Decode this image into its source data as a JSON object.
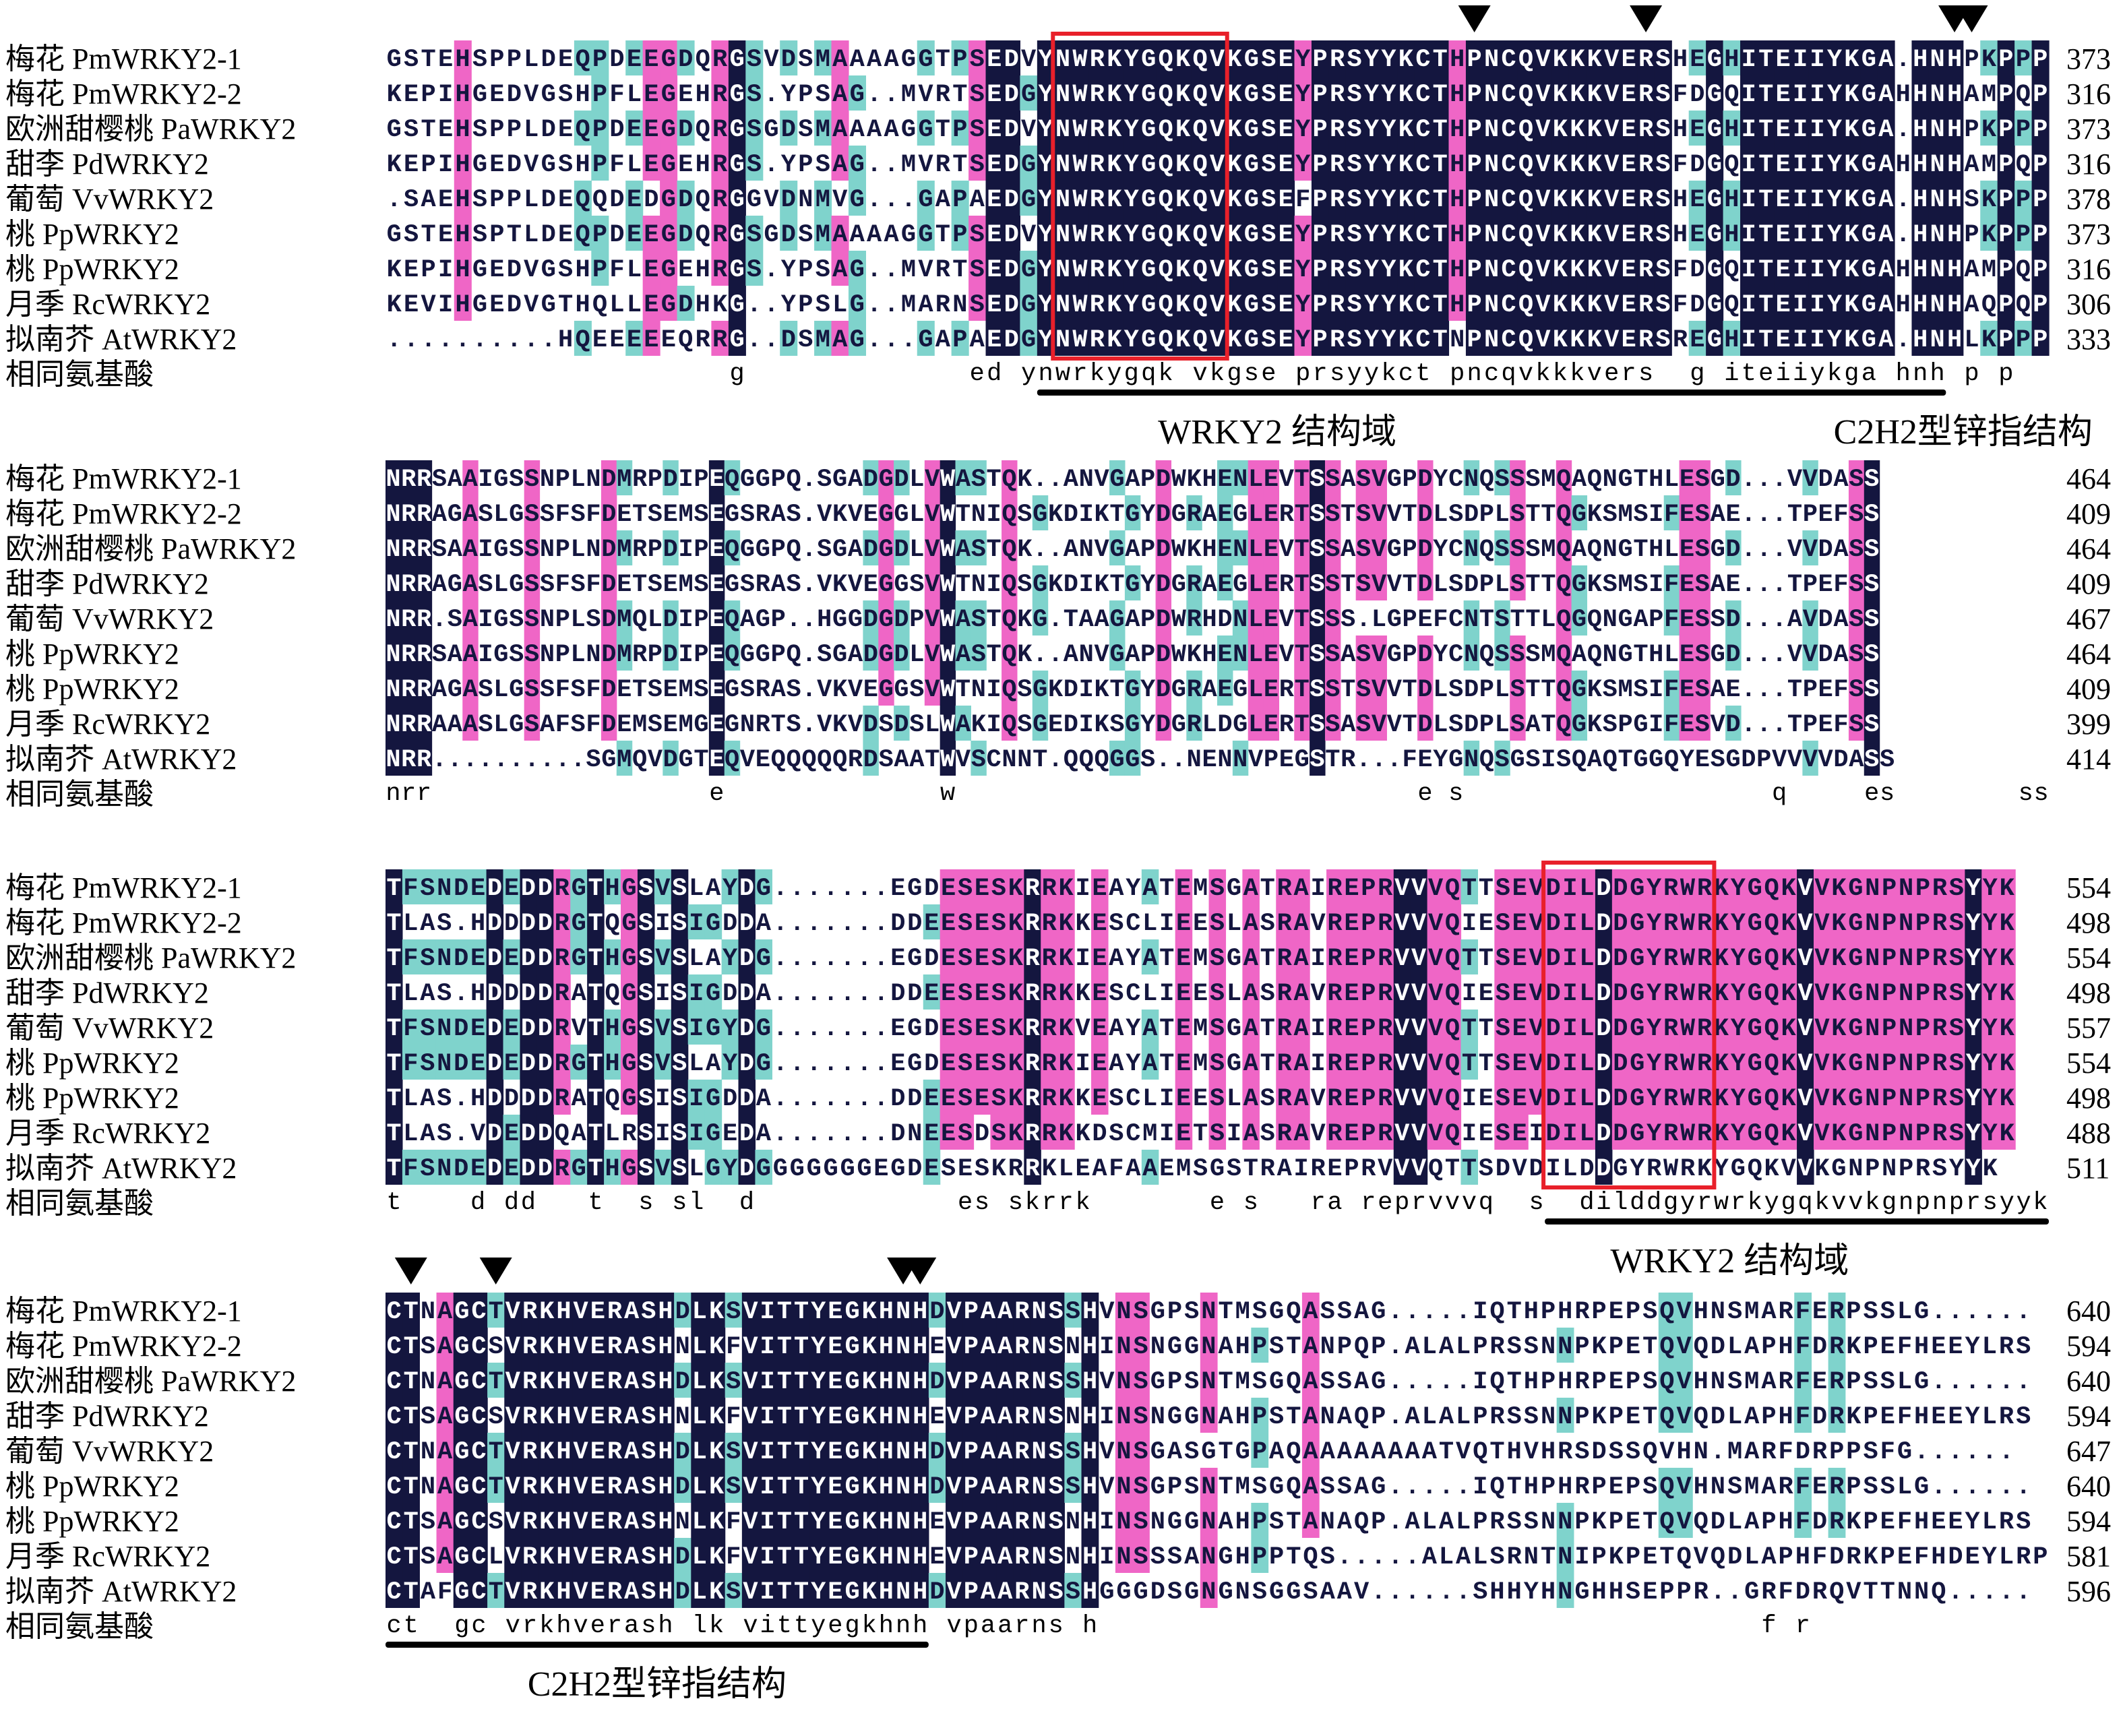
{
  "colors": {
    "identical": "#14163f",
    "high": "#ef66c6",
    "low": "#7fd3cc",
    "box": "#e8202a",
    "bar": "#000000"
  },
  "species": [
    "梅花 PmWRKY2-1",
    "梅花 PmWRKY2-2",
    "欧洲甜樱桃 PaWRKY2",
    "甜李 PdWRKY2",
    "葡萄 VvWRKY2",
    "桃 PpWRKY2",
    "桃 PpWRKY2",
    "月季 RcWRKY2",
    "拟南芥 AtWRKY2"
  ],
  "consensus_label": "相同氨基酸",
  "blocks": [
    {
      "seqs": [
        "GSTEHSPPLDEQPDEEGDQRGSVDSMAAAAGGTPSEDVYNWRKYGQKQVKGSEYPRSYYKCTHPNCQVKKKVERSHEGHITEIIYKGA.HNHPKPPP",
        "KEPIHGEDVGSHPFLEGEHRGS.YPSAG..MVRTSEDGYNWRKYGQKQVKGSEYPRSYYKCTHPNCQVKKKVERSFDGQITEIIYKGAHHNHAMPQP",
        "GSTEHSPPLDEQPDEEGDQRGSGDSMAAAAGGTPSEDVYNWRKYGQKQVKGSEYPRSYYKCTHPNCQVKKKVERSHEGHITEIIYKGA.HNHPKPPP",
        "KEPIHGEDVGSHPFLEGEHRGS.YPSAG..MVRTSEDGYNWRKYGQKQVKGSEYPRSYYKCTHPNCQVKKKVERSFDGQITEIIYKGAHHNHAMPQP",
        ".SAEHSPPLDEQQDEDGDQRGGVDNMVG...GAPAEDGYNWRKYGQKQVKGSEFPRSYYKCTHPNCQVKKKVERSHEGHITEIIYKGA.HNHSKPPP",
        "GSTEHSPTLDEQPDEEGDQRGSGDSMAAAAGGTPSEDVYNWRKYGQKQVKGSEYPRSYYKCTHPNCQVKKKVERSHEGHITEIIYKGA.HNHPKPPP",
        "KEPIHGEDVGSHPFLEGEHRGS.YPSAG..MVRTSEDGYNWRKYGQKQVKGSEYPRSYYKCTHPNCQVKKKVERSFDGQITEIIYKGAHHNHAMPQP",
        "KEVIHGEDVGTHQLLEGDHKG..YPSLG..MARNSEDGYNWRKYGQKQVKGSEYPRSYYKCTHPNCQVKKKVERSFDGQITEIIYKGAHHNHAQPQP",
        "..........HQEEEEEQRRG..DSMAG...GAPAEDGYNWRKYGQKQVKGSEYPRSYYKCTNPNCQVKKKVERSREGHITEIIYKGA.HNHLKPPP"
      ],
      "numbers": [
        "373",
        "316",
        "373",
        "316",
        "378",
        "373",
        "316",
        "306",
        "333"
      ],
      "consensus": "....................g.............ed.ynwrkygqk.vkgse.prsyykct.pncqvkkkvers..g.iteiiykga.hnh.p.p",
      "features": [
        "WRKY2 结构域",
        "C2H2型锌指结构"
      ]
    },
    {
      "seqs": [
        "NRRSAAIGSSNPLNDMRPDIPEQGGPQ.SGADGDLVWASTQK..ANVGAPDWKHENLEVTSSASVGPDYCNQSSSMQAQNGTHLESGD...VVDASS",
        "NRRAGASLGSSFSFDETSEMSEGSRAS.VKVEGGLVWTNIQSGKDIKTGYDGRAEGLERTSSTSVVTDLSDPLSTTQGKSMSIFESAE...TPEFSS",
        "NRRSAAIGSSNPLNDMRPDIPEQGGPQ.SGADGDLVWASTQK..ANVGAPDWKHENLEVTSSASVGPDYCNQSSSMQAQNGTHLESGD...VVDASS",
        "NRRAGASLGSSFSFDETSEMSEGSRAS.VKVEGGSVWTNIQSGKDIKTGYDGRAEGLERTSSTSVVTDLSDPLSTTQGKSMSIFESAE...TPEFSS",
        "NRR.SAIGSSNPLSDMQLDIPEQAGP..HGGDGDPVWASTQKG.TAAGAPDWRHDNLEVTSSS.LGPEFCNTSTTLQGQNGAPFESSD...AVDASS",
        "NRRSAAIGSSNPLNDMRPDIPEQGGPQ.SGADGDLVWASTQK..ANVGAPDWKHENLEVTSSASVGPDYCNQSSSMQAQNGTHLESGD...VVDASS",
        "NRRAGASLGSSFSFDETSEMSEGSRAS.VKVEGGSVWTNIQSGKDIKTGYDGRAEGLERTSSTSVVTDLSDPLSTTQGKSMSIFESAE...TPEFSS",
        "NRRAAASLGSAFSFDEMSEMGEGNRTS.VKVDSDSLWAKIQSGEDIKSGYDGRLDGLERTSSASVVTDLSDPLSATQGKSPGIFESVD...TPEFSS",
        "NRR..........SGMQVDGTEQVEQQQQQRDSAATWVSCNNT.QQQGGS..NENNVPEGSTR...FEYGNQSGSISQAQTGGQYESGDPVVVVDASS"
      ],
      "numbers": [
        "464",
        "409",
        "464",
        "409",
        "467",
        "464",
        "409",
        "399",
        "414"
      ],
      "consensus": "nrr..................e..............w..............................e.s....................q.....es........ss",
      "features": []
    },
    {
      "seqs": [
        "TFSNDEDEDDRGTHGSVSLAYDG.......EGDESESKRRKIEAYATEMSGATRAIREPRVVVQTTSEVDILDDGYRWRKYGQKVVKGNPNPRSYYK",
        "TLAS.HDDDDRGTQGSISIGDDA.......DDEESESKRRKKESCLIEESLASRAVREPRVVVQIESEVDILDDGYRWRKYGQKVVKGNPNPRSYYK",
        "TFSNDEDEDDRGTHGSVSLAYDG.......EGDESESKRRKIEAYATEMSGATRAIREPRVVVQTTSEVDILDDGYRWRKYGQKVVKGNPNPRSYYK",
        "TLAS.HDDDDRATQGSISIGDDA.......DDEESESKRRKKESCLIEESLASRAVREPRVVVQIESEVDILDDGYRWRKYGQKVVKGNPNPRSYYK",
        "TFSNDEDEDDRVTHGSVSIGYDG.......EGDESESKRRKVEAYATEMSGATRAIREPRVVVQTTSEVDILDDGYRWRKYGQKVVKGNPNPRSYYK",
        "TFSNDEDEDDRGTHGSVSLAYDG.......EGDESESKRRKIEAYATEMSGATRAIREPRVVVQTTSEVDILDDGYRWRKYGQKVVKGNPNPRSYYK",
        "TLAS.HDDDDRATQGSISIGDDA.......DDEESESKRRKKESCLIEESLASRAVREPRVVVQIESEVDILDDGYRWRKYGQKVVKGNPNPRSYYK",
        "TLAS.VDEDDQATLRSISIGEDA.......DNEESDSKRRKKDSCMIETSIASRAVREPRVVVQIESEIDILDDGYRWRKYGQKVVKGNPNPRSYYK",
        "TFSNDEDEDDRGTHGSVSLGYDGGGGGGGEGDESESKRRKLEAFAAEMSGSTRAIREPRVVVQTTSDVDILDDGYRWRKYGQKVVKGNPNPRSYYK"
      ],
      "numbers": [
        "554",
        "498",
        "554",
        "498",
        "557",
        "554",
        "498",
        "488",
        "511"
      ],
      "consensus": "t....d.dd...t..s.sl..d............es.skrrk.......e.s...ra.reprvvvq..s..dilddgyrwrkygqkvvkgnpnprsyyk",
      "features": [
        "WRKY2 结构域"
      ]
    },
    {
      "seqs": [
        "CTNAGCTVRKHVERASHDLKSVITTYEGKHNHDVPAARNSSHVNSGPSNTMSGQASSAG.....IQTHPHRPEPSQVHNSMARFERPSSLG......",
        "CTSAGCSVRKHVERASHNLKFVITTYEGKHNHEVPAARNSNHINSNGGNAHPSTANPQP.ALALPRSSNNPKPETQVQDLAPHFDRKPEFHEEYLRS",
        "CTNAGCTVRKHVERASHDLKSVITTYEGKHNHDVPAARNSSHVNSGPSNTMSGQASSAG.....IQTHPHRPEPSQVHNSMARFERPSSLG......",
        "CTSAGCSVRKHVERASHNLKFVITTYEGKHNHEVPAARNSNHINSNGGNAHPSTANAQP.ALALPRSSNNPKPETQVQDLAPHFDRKPEFHEEYLRS",
        "CTNAGCTVRKHVERASHDLKSVITTYEGKHNHDVPAARNSSHVNSGASGTGPAQAAAAAAAATVQTHVHRSDSSQVHN.MARFDRPPSFG......",
        "CTNAGCTVRKHVERASHDLKSVITTYEGKHNHDVPAARNSSHVNSGPSNTMSGQASSAG.....IQTHPHRPEPSQVHNSMARFERPSSLG......",
        "CTSAGCSVRKHVERASHNLKFVITTYEGKHNHEVPAARNSNHINSNGGNAHPSTANAQP.ALALPRSSNNPKPETQVQDLAPHFDRKPEFHEEYLRS",
        "CTSAGCLVRKHVERASHDLKFVITTYEGKHNHEVPAARNSNHINSSSANGHPPTQS.....ALALSRNTNIPKPETQVQDLAPHFDRKPEFHDEYLRP",
        "CTAFGCTVRKHVERASHDLKSVITTYEGKHNHDVPAARNSSHGGGDSGNGNSGGSAAV......SHHYHNGHHSEPPR..GRFDRQVTTNNQ....."
      ],
      "numbers": [
        "640",
        "594",
        "640",
        "594",
        "647",
        "640",
        "594",
        "581",
        "596"
      ],
      "consensus": "ct..gc.vrkhverash.lk.vittyegkhnh.vpaarns.h.......................................f.r.............",
      "features": [
        "C2H2型锌指结构"
      ]
    }
  ]
}
